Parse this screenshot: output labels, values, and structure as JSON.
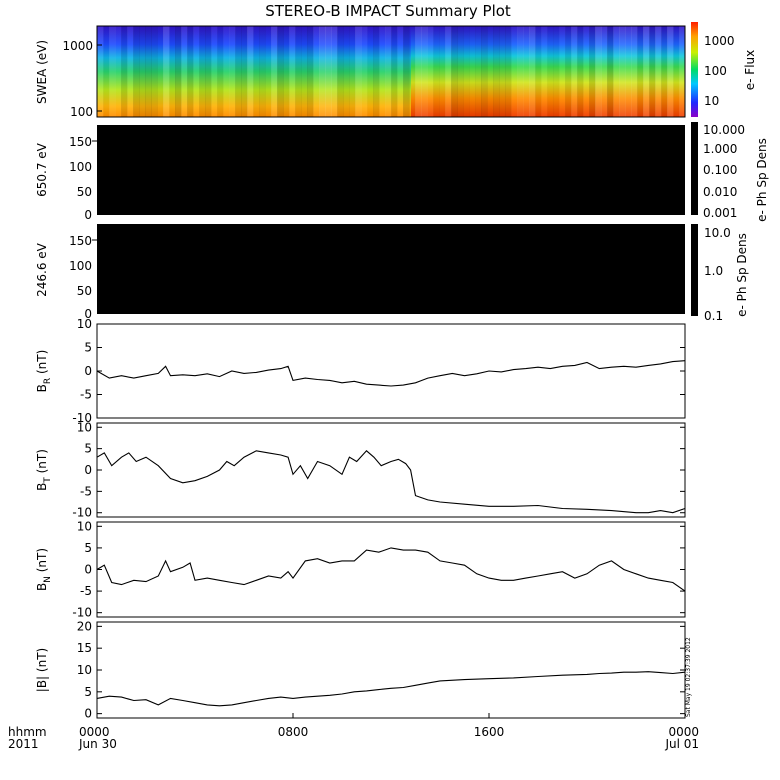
{
  "title": "STEREO-B IMPACT Summary Plot",
  "time_axis": {
    "row_label": "hhmm",
    "year": "2011",
    "ticks": [
      {
        "hour": 0,
        "time": "0000",
        "date": "Jun 30"
      },
      {
        "hour": 8,
        "time": "0800",
        "date": ""
      },
      {
        "hour": 16,
        "time": "1600",
        "date": ""
      },
      {
        "hour": 24,
        "time": "0000",
        "date": "Jul 01"
      }
    ]
  },
  "timestamp": "Sat May 19 02:37:39 2012",
  "colors": {
    "trace": "#000000",
    "panel_fill": "#000000",
    "frame": "#000000"
  },
  "chart_data": [
    {
      "type": "heatmap",
      "name": "swea-spectrogram",
      "ylabel": "SWEA (eV)",
      "yscale": "log",
      "ylim": [
        90,
        2000
      ],
      "yticks": [
        {
          "v": 100,
          "label": "100"
        },
        {
          "v": 1000,
          "label": "1000"
        }
      ],
      "colorbar": {
        "label": "e- Flux",
        "scale": "log",
        "range": [
          3,
          3000
        ],
        "ticks": [
          {
            "v": 10,
            "label": "10"
          },
          {
            "v": 100,
            "label": "100"
          },
          {
            "v": 1000,
            "label": "1000"
          }
        ],
        "colormap": "rainbow"
      },
      "profile_hours": [
        0,
        7,
        12,
        12.8,
        20,
        24
      ],
      "profile_shift": [
        0,
        0.05,
        0.05,
        0.3,
        0.45,
        0.35
      ]
    },
    {
      "type": "heatmap",
      "name": "pitch-angle-650",
      "ylabel": "650.7 eV",
      "ylim": [
        0,
        180
      ],
      "yticks": [
        {
          "v": 0,
          "label": "0"
        },
        {
          "v": 50,
          "label": "50"
        },
        {
          "v": 100,
          "label": "100"
        },
        {
          "v": 150,
          "label": "150"
        }
      ],
      "fill": "black",
      "colorbar": {
        "label": "e- Ph Sp Dens",
        "scale": "log",
        "range": [
          0.001,
          10
        ],
        "ticks": [
          {
            "v": 10,
            "label": "10.000"
          },
          {
            "v": 1,
            "label": "1.000"
          },
          {
            "v": 0.1,
            "label": "0.100"
          },
          {
            "v": 0.01,
            "label": "0.010"
          },
          {
            "v": 0.001,
            "label": "0.001"
          }
        ]
      }
    },
    {
      "type": "heatmap",
      "name": "pitch-angle-246",
      "ylabel": "246.6 eV",
      "ylim": [
        0,
        180
      ],
      "yticks": [
        {
          "v": 0,
          "label": "0"
        },
        {
          "v": 50,
          "label": "50"
        },
        {
          "v": 100,
          "label": "100"
        },
        {
          "v": 150,
          "label": "150"
        }
      ],
      "fill": "black",
      "colorbar": {
        "label": "e- Ph Sp Dens",
        "scale": "log",
        "range": [
          0.1,
          10
        ],
        "ticks": [
          {
            "v": 10,
            "label": "10.0"
          },
          {
            "v": 1,
            "label": "1.0"
          },
          {
            "v": 0.1,
            "label": "0.1"
          }
        ]
      }
    },
    {
      "type": "line",
      "name": "br",
      "ylabel": {
        "sym": "B",
        "sub": "R",
        "unit": "(nT)"
      },
      "ylim": [
        -10,
        10
      ],
      "yticks": [
        {
          "v": 10,
          "label": "10"
        },
        {
          "v": 5,
          "label": "5"
        },
        {
          "v": 0,
          "label": "0"
        },
        {
          "v": -5,
          "label": "-5"
        },
        {
          "v": -10,
          "label": "-10"
        }
      ],
      "x_hours": [
        0,
        0.5,
        1,
        1.5,
        2,
        2.5,
        2.8,
        3,
        3.5,
        4,
        4.5,
        5,
        5.5,
        6,
        6.5,
        7,
        7.5,
        7.8,
        8,
        8.5,
        9,
        9.5,
        10,
        10.5,
        11,
        11.5,
        12,
        12.5,
        13,
        13.5,
        14,
        14.5,
        15,
        15.5,
        16,
        16.5,
        17,
        17.5,
        18,
        18.5,
        19,
        19.5,
        20,
        20.5,
        21,
        21.5,
        22,
        22.5,
        23,
        23.5,
        24
      ],
      "y": [
        0,
        -1.5,
        -1,
        -1.5,
        -1,
        -0.5,
        1,
        -1,
        -0.8,
        -1,
        -0.6,
        -1.2,
        0,
        -0.5,
        -0.3,
        0.2,
        0.5,
        1,
        -2,
        -1.5,
        -1.8,
        -2,
        -2.5,
        -2.2,
        -2.8,
        -3,
        -3.2,
        -3,
        -2.5,
        -1.5,
        -1,
        -0.5,
        -1,
        -0.6,
        0,
        -0.2,
        0.3,
        0.5,
        0.8,
        0.5,
        1,
        1.2,
        1.8,
        0.5,
        0.8,
        1,
        0.8,
        1.2,
        1.5,
        2,
        2.2
      ]
    },
    {
      "type": "line",
      "name": "bt",
      "ylabel": {
        "sym": "B",
        "sub": "T",
        "unit": "(nT)"
      },
      "ylim": [
        -11,
        11
      ],
      "yticks": [
        {
          "v": 10,
          "label": "10"
        },
        {
          "v": 5,
          "label": "5"
        },
        {
          "v": 0,
          "label": "0"
        },
        {
          "v": -5,
          "label": "-5"
        },
        {
          "v": -10,
          "label": "-10"
        }
      ],
      "x_hours": [
        0,
        0.3,
        0.6,
        1,
        1.3,
        1.6,
        2,
        2.5,
        3,
        3.5,
        4,
        4.5,
        5,
        5.3,
        5.6,
        6,
        6.5,
        7,
        7.5,
        7.8,
        8,
        8.3,
        8.6,
        9,
        9.5,
        10,
        10.3,
        10.6,
        11,
        11.3,
        11.6,
        12,
        12.3,
        12.6,
        12.8,
        13,
        13.5,
        14,
        15,
        16,
        17,
        18,
        19,
        20,
        21,
        22,
        22.5,
        23,
        23.5,
        24
      ],
      "y": [
        3,
        4,
        1,
        3,
        4,
        2,
        3,
        1,
        -2,
        -3,
        -2.5,
        -1.5,
        0,
        2,
        1,
        3,
        4.5,
        4,
        3.5,
        3,
        -1,
        1,
        -2,
        2,
        1,
        -1,
        3,
        2,
        4.5,
        3,
        1,
        2,
        2.5,
        1.5,
        0,
        -6,
        -7,
        -7.5,
        -8,
        -8.5,
        -8.5,
        -8.3,
        -9,
        -9.2,
        -9.5,
        -10,
        -10,
        -9.5,
        -10,
        -9
      ]
    },
    {
      "type": "line",
      "name": "bn",
      "ylabel": {
        "sym": "B",
        "sub": "N",
        "unit": "(nT)"
      },
      "ylim": [
        -11,
        11
      ],
      "yticks": [
        {
          "v": 10,
          "label": "10"
        },
        {
          "v": 5,
          "label": "5"
        },
        {
          "v": 0,
          "label": "0"
        },
        {
          "v": -5,
          "label": "-5"
        },
        {
          "v": -10,
          "label": "-10"
        }
      ],
      "x_hours": [
        0,
        0.3,
        0.6,
        1,
        1.5,
        2,
        2.5,
        2.8,
        3,
        3.5,
        3.8,
        4,
        4.5,
        5,
        5.5,
        6,
        6.5,
        7,
        7.5,
        7.8,
        8,
        8.5,
        9,
        9.5,
        10,
        10.5,
        11,
        11.5,
        12,
        12.5,
        13,
        13.5,
        14,
        14.5,
        15,
        15.5,
        16,
        16.5,
        17,
        17.5,
        18,
        18.5,
        19,
        19.5,
        20,
        20.5,
        21,
        21.5,
        22,
        22.5,
        23,
        23.5,
        24
      ],
      "y": [
        0,
        1,
        -3,
        -3.5,
        -2.5,
        -2.8,
        -1.5,
        2,
        -0.5,
        0.5,
        1.5,
        -2.5,
        -2,
        -2.5,
        -3,
        -3.5,
        -2.5,
        -1.5,
        -2,
        -0.5,
        -2,
        2,
        2.5,
        1.5,
        2,
        2,
        4.5,
        4,
        5,
        4.5,
        4.5,
        4,
        2,
        1.5,
        1,
        -1,
        -2,
        -2.5,
        -2.5,
        -2,
        -1.5,
        -1,
        -0.5,
        -2,
        -1,
        1,
        2,
        0,
        -1,
        -2,
        -2.5,
        -3,
        -5
      ]
    },
    {
      "type": "line",
      "name": "bmag",
      "ylabel": {
        "sym": "|B|",
        "sub": "",
        "unit": "(nT)"
      },
      "ylim": [
        -1,
        21
      ],
      "yticks": [
        {
          "v": 20,
          "label": "20"
        },
        {
          "v": 15,
          "label": "15"
        },
        {
          "v": 10,
          "label": "10"
        },
        {
          "v": 5,
          "label": "5"
        },
        {
          "v": 0,
          "label": "0"
        }
      ],
      "x_hours": [
        0,
        0.5,
        1,
        1.5,
        2,
        2.5,
        3,
        3.5,
        4,
        4.5,
        5,
        5.5,
        6,
        6.5,
        7,
        7.5,
        8,
        8.5,
        9,
        9.5,
        10,
        10.5,
        11,
        11.5,
        12,
        12.5,
        13,
        13.5,
        14,
        15,
        16,
        17,
        18,
        19,
        20,
        20.5,
        21,
        21.5,
        22,
        22.5,
        23,
        23.5,
        24
      ],
      "y": [
        3.5,
        4,
        3.8,
        3,
        3.2,
        2,
        3.5,
        3,
        2.5,
        2,
        1.8,
        2,
        2.5,
        3,
        3.5,
        3.8,
        3.5,
        3.8,
        4,
        4.2,
        4.5,
        5,
        5.2,
        5.5,
        5.8,
        6,
        6.5,
        7,
        7.5,
        7.8,
        8,
        8.2,
        8.5,
        8.8,
        9,
        9.2,
        9.3,
        9.5,
        9.5,
        9.6,
        9.4,
        9.2,
        9.5
      ]
    }
  ]
}
